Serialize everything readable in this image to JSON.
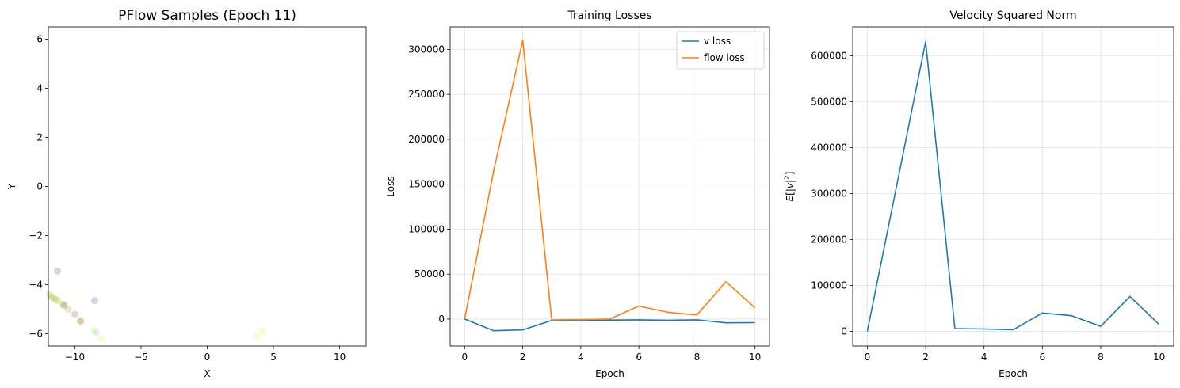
{
  "chart_data": [
    {
      "type": "scatter",
      "title": "PFlow Samples (Epoch 11)",
      "xlabel": "X",
      "ylabel": "Y",
      "xlim": [
        -12,
        12
      ],
      "ylim": [
        -6.5,
        6.5
      ],
      "xticks": [
        -10,
        -5,
        0,
        5,
        10
      ],
      "xtick_labels": [
        "−10",
        "−5",
        "0",
        "5",
        "10"
      ],
      "yticks": [
        -6,
        -4,
        -2,
        0,
        2,
        4,
        6
      ],
      "ytick_labels": [
        "−6",
        "−4",
        "−2",
        "0",
        "2",
        "4",
        "6"
      ],
      "grid": false,
      "points": [
        {
          "x": -11.3,
          "y": -3.45,
          "color": "#7b6bb0"
        },
        {
          "x": -8.5,
          "y": -4.65,
          "color": "#7b6bb0"
        },
        {
          "x": -11.9,
          "y": -4.4,
          "color": "#a8c83a"
        },
        {
          "x": -11.75,
          "y": -4.5,
          "color": "#a8c83a"
        },
        {
          "x": -11.6,
          "y": -4.55,
          "color": "#b5cc40"
        },
        {
          "x": -11.45,
          "y": -4.6,
          "color": "#a8c83a"
        },
        {
          "x": -11.3,
          "y": -4.65,
          "color": "#c0d040"
        },
        {
          "x": -10.9,
          "y": -4.8,
          "color": "#b5a850"
        },
        {
          "x": -10.8,
          "y": -4.85,
          "color": "#8a7a40"
        },
        {
          "x": -10.5,
          "y": -5.0,
          "color": "#c8b060"
        },
        {
          "x": -10.0,
          "y": -5.2,
          "color": "#a08070"
        },
        {
          "x": -9.6,
          "y": -5.45,
          "color": "#c8a840"
        },
        {
          "x": -9.55,
          "y": -5.5,
          "color": "#b09040"
        },
        {
          "x": -8.6,
          "y": -5.85,
          "color": "#f0e060"
        },
        {
          "x": -8.4,
          "y": -5.95,
          "color": "#88d8c0"
        },
        {
          "x": -8.0,
          "y": -6.2,
          "color": "#f7ea60"
        },
        {
          "x": 3.7,
          "y": -6.1,
          "color": "#f7ea60"
        },
        {
          "x": 4.2,
          "y": -5.9,
          "color": "#f7ea60"
        }
      ]
    },
    {
      "type": "line",
      "title": "Training Losses",
      "xlabel": "Epoch",
      "ylabel": "Loss",
      "x": [
        0,
        1,
        2,
        3,
        4,
        5,
        6,
        7,
        8,
        9,
        10
      ],
      "xlim": [
        -0.5,
        10.5
      ],
      "ylim": [
        -30000,
        325000
      ],
      "xticks": [
        0,
        2,
        4,
        6,
        8,
        10
      ],
      "xtick_labels": [
        "0",
        "2",
        "4",
        "6",
        "8",
        "10"
      ],
      "yticks": [
        0,
        50000,
        100000,
        150000,
        200000,
        250000,
        300000
      ],
      "ytick_labels": [
        "0",
        "50000",
        "100000",
        "150000",
        "200000",
        "250000",
        "300000"
      ],
      "grid": true,
      "legend": "top-right",
      "series": [
        {
          "name": "v loss",
          "color": "#1f77b4",
          "values": [
            0,
            -13000,
            -12000,
            -1500,
            -1800,
            -1200,
            -800,
            -1500,
            -800,
            -4200,
            -4000
          ]
        },
        {
          "name": "flow loss",
          "color": "#ff7f0e",
          "values": [
            0,
            165000,
            310000,
            -1000,
            -500,
            0,
            14500,
            7500,
            4500,
            41500,
            12500
          ]
        }
      ]
    },
    {
      "type": "line",
      "title": "Velocity Squared Norm",
      "xlabel": "Epoch",
      "ylabel_parts": [
        "E",
        "[|",
        "v",
        "|",
        "2",
        "]"
      ],
      "x": [
        0,
        1,
        2,
        3,
        4,
        5,
        6,
        7,
        8,
        9,
        10
      ],
      "xlim": [
        -0.5,
        10.5
      ],
      "ylim": [
        -32000,
        663000
      ],
      "xticks": [
        0,
        2,
        4,
        6,
        8,
        10
      ],
      "xtick_labels": [
        "0",
        "2",
        "4",
        "6",
        "8",
        "10"
      ],
      "yticks": [
        0,
        100000,
        200000,
        300000,
        400000,
        500000,
        600000
      ],
      "ytick_labels": [
        "0",
        "100000",
        "200000",
        "300000",
        "400000",
        "500000",
        "600000"
      ],
      "grid": true,
      "series": [
        {
          "color": "#1f77b4",
          "values": [
            0,
            315000,
            631000,
            6000,
            5000,
            3500,
            40000,
            34000,
            11000,
            76000,
            15000
          ]
        }
      ]
    }
  ]
}
